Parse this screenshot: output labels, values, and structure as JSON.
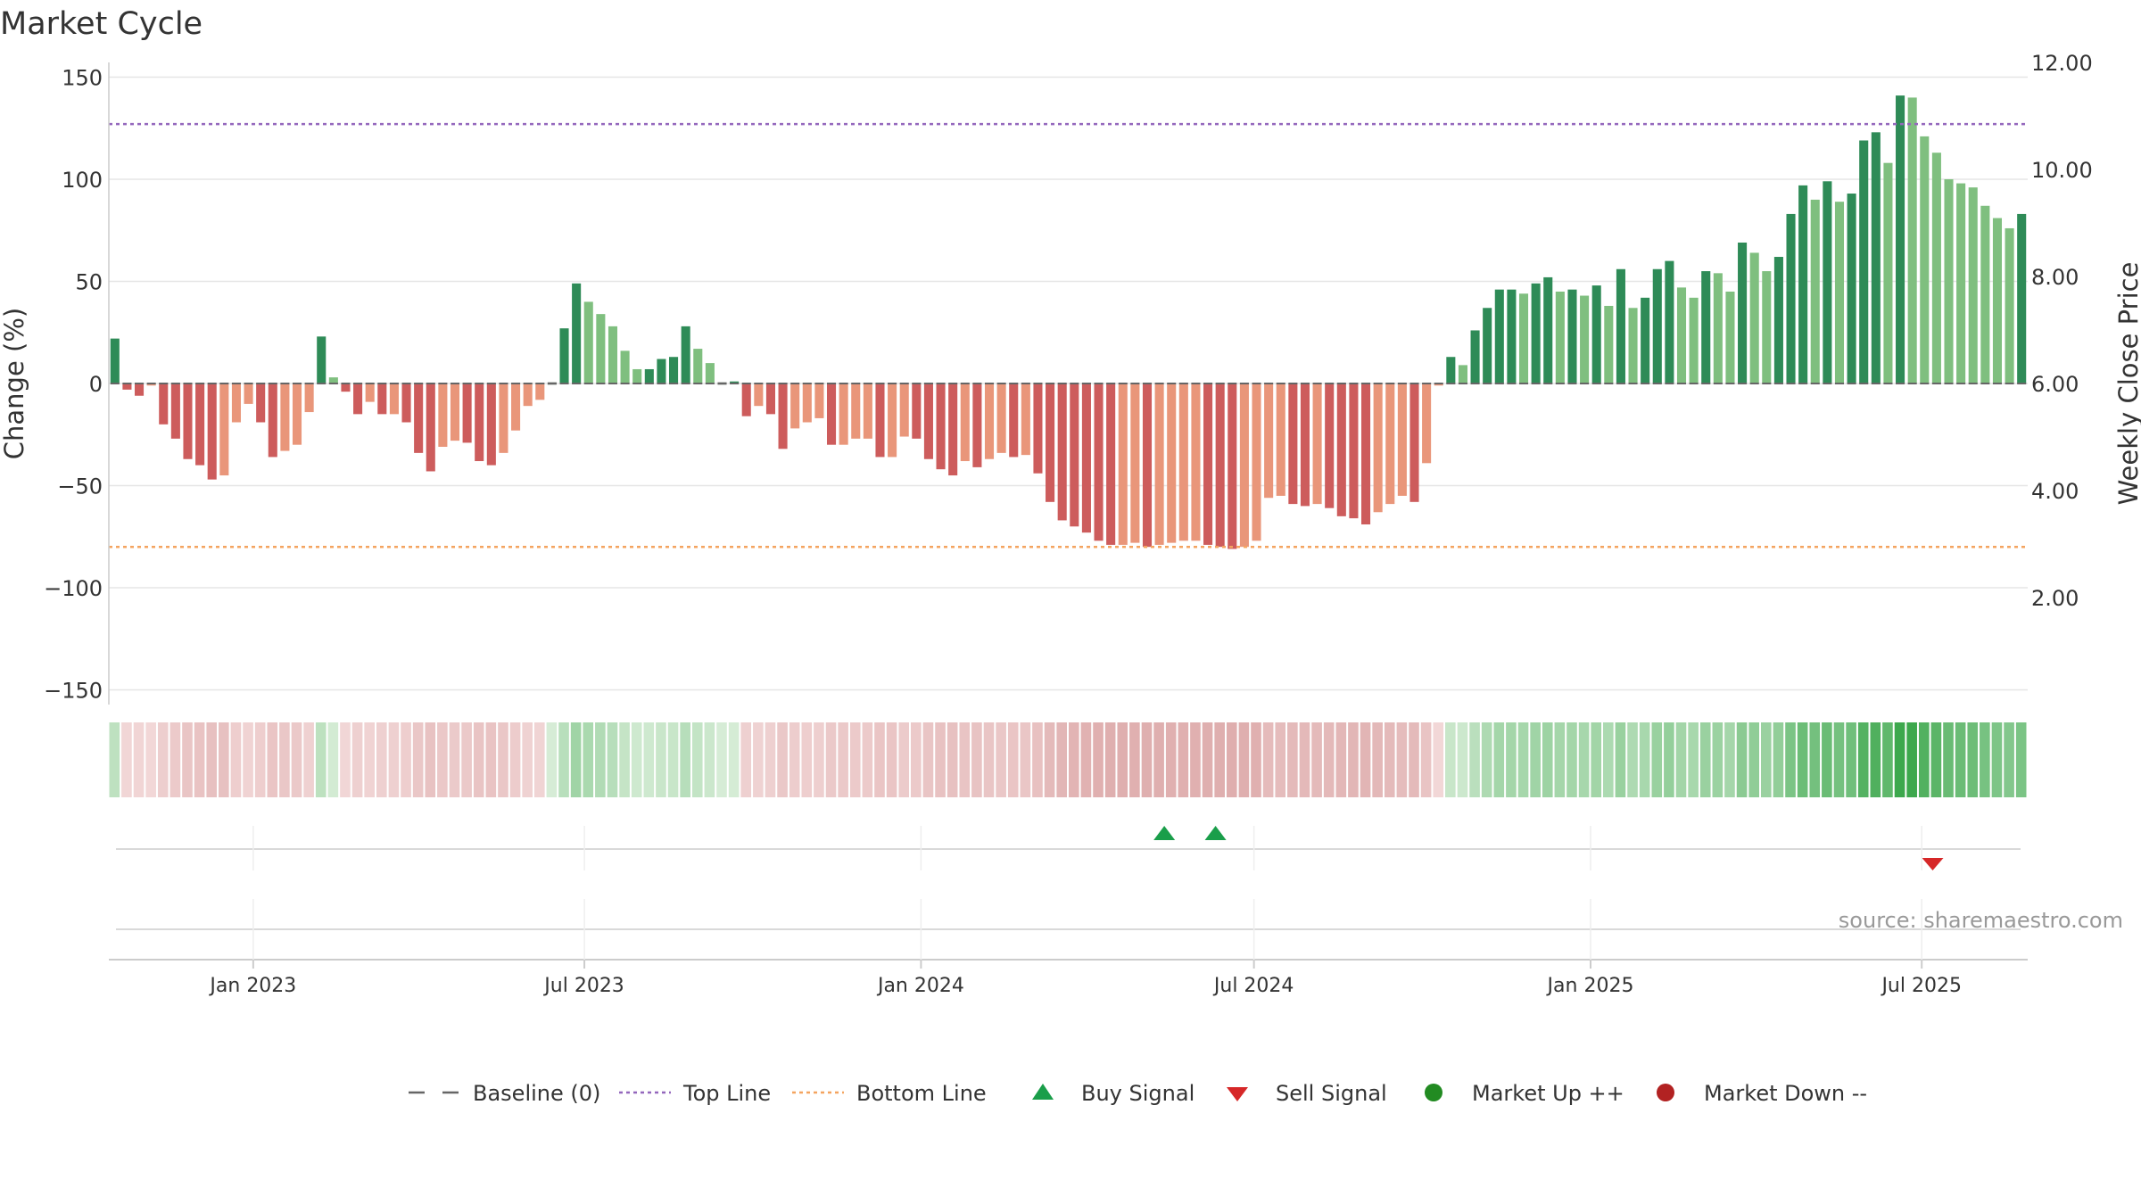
{
  "chart_data": {
    "type": "bar",
    "title": "Market Cycle",
    "ylabel": "Change (%)",
    "y2label": "Weekly Close Price",
    "source": "source: sharemaestro.com",
    "ylim": [
      -160,
      160
    ],
    "y2lim": [
      0,
      12.4
    ],
    "yticks": [
      150,
      100,
      50,
      0,
      -50,
      -100,
      -150
    ],
    "yticklabels": [
      "150",
      "100",
      "50",
      "0",
      "−50",
      "−100",
      "−150"
    ],
    "y2ticks": [
      12,
      10,
      8,
      6,
      4,
      2
    ],
    "y2ticklabels": [
      "12.00",
      "10.00",
      "8.00",
      "6.00",
      "4.00",
      "2.00"
    ],
    "x_start": "2022-10-17",
    "x_end": "2025-08-25",
    "xticks": [
      {
        "date": "2023-01-01",
        "label": "Jan 2023"
      },
      {
        "date": "2023-07-01",
        "label": "Jul 2023"
      },
      {
        "date": "2024-01-01",
        "label": "Jan 2024"
      },
      {
        "date": "2024-07-01",
        "label": "Jul 2024"
      },
      {
        "date": "2025-01-01",
        "label": "Jan 2025"
      },
      {
        "date": "2025-07-01",
        "label": "Jul 2025"
      }
    ],
    "weekly_change_pct": [
      22,
      -3,
      -6,
      -1,
      -20,
      -27,
      -37,
      -40,
      -47,
      -45,
      -19,
      -10,
      -19,
      -36,
      -33,
      -30,
      -14,
      23,
      3,
      -4,
      -15,
      -9,
      -15,
      -15,
      -19,
      -34,
      -43,
      -31,
      -28,
      -29,
      -38,
      -40,
      -34,
      -23,
      -11,
      -8,
      0,
      27,
      49,
      40,
      34,
      28,
      16,
      7,
      7,
      12,
      13,
      28,
      17,
      10,
      0,
      1,
      -16,
      -11,
      -15,
      -32,
      -22,
      -19,
      -17,
      -30,
      -30,
      -27,
      -27,
      -36,
      -36,
      -26,
      -27,
      -37,
      -42,
      -45,
      -38,
      -41,
      -37,
      -34,
      -36,
      -35,
      -44,
      -58,
      -67,
      -70,
      -73,
      -77,
      -79,
      -79,
      -78,
      -80,
      -79,
      -78,
      -77,
      -77,
      -79,
      -80,
      -81,
      -80,
      -77,
      -56,
      -55,
      -59,
      -60,
      -59,
      -61,
      -65,
      -66,
      -69,
      -63,
      -59,
      -55,
      -58,
      -39,
      -1,
      13,
      9,
      26,
      37,
      46,
      46,
      44,
      49,
      52,
      45,
      46,
      43,
      48,
      38,
      56,
      37,
      42,
      56,
      60,
      47,
      42,
      55,
      54,
      45,
      69,
      64,
      55,
      62,
      83,
      97,
      90,
      99,
      89,
      93,
      119,
      123,
      108,
      141,
      140,
      121,
      113,
      100,
      98,
      96,
      87,
      81,
      76,
      83
    ],
    "top_line": 127,
    "bottom_line": -80,
    "buy_signals": [
      "2024-05-13",
      "2024-06-10"
    ],
    "sell_signals": [
      "2025-07-07"
    ],
    "colors": {
      "up_dark": "#2e8b57",
      "up_light": "#7fbf7f",
      "down_dark": "#cd5c5c",
      "down_light": "#e9967a",
      "top_line": "#9467bd",
      "bottom_line": "#f4a460",
      "buy": "#1a9e4a",
      "sell": "#d62728",
      "market_up": "#228b22",
      "market_down": "#b22222",
      "baseline": "#666666"
    },
    "legend": [
      {
        "label": "Baseline (0)",
        "marker": "dash"
      },
      {
        "label": "Top Line",
        "marker": "dot-purple"
      },
      {
        "label": "Bottom Line",
        "marker": "dot-orange"
      },
      {
        "label": "Buy Signal",
        "marker": "triangle-up"
      },
      {
        "label": "Sell Signal",
        "marker": "triangle-down"
      },
      {
        "label": "Market Up ++",
        "marker": "circle-green"
      },
      {
        "label": "Market Down --",
        "marker": "circle-red"
      }
    ],
    "legend_position": "bottom-center"
  }
}
